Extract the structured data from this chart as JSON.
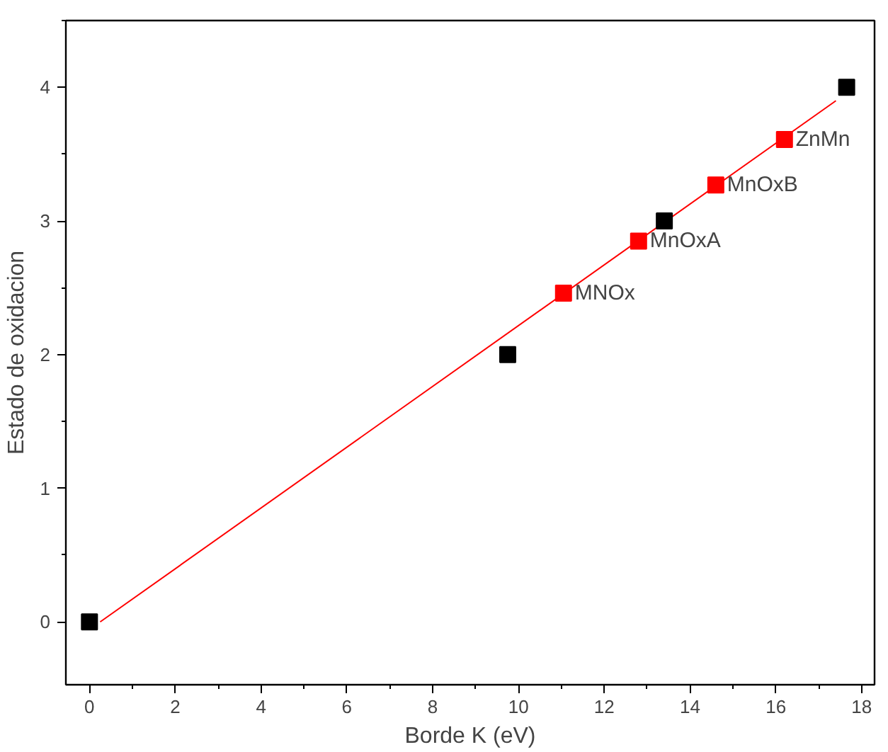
{
  "chart_data": {
    "type": "scatter",
    "xlabel": "Borde K (eV)",
    "ylabel": "Estado de oxidacion",
    "marker": "square",
    "grid": false,
    "xlim": [
      -0.55,
      18.3
    ],
    "ylim": [
      -0.47,
      4.5
    ],
    "xticks": [
      0,
      2,
      4,
      6,
      8,
      10,
      12,
      14,
      16,
      18
    ],
    "yticks": [
      0,
      1,
      2,
      3,
      4
    ],
    "series": [
      {
        "type": "line",
        "color": "#ff0000",
        "x": [
          0.25,
          17.4
        ],
        "values": [
          0.0,
          3.9
        ],
        "marker": "none"
      },
      {
        "color": "#000000",
        "x": [
          0,
          9.75,
          13.4,
          17.65
        ],
        "values": [
          0,
          2,
          3,
          4
        ]
      },
      {
        "color": "#ff0000",
        "x": [
          11.05,
          12.8,
          14.6,
          16.2
        ],
        "values": [
          2.46,
          2.85,
          3.27,
          3.61
        ]
      }
    ],
    "annotations": [
      {
        "text": "MNOx",
        "x": 11.05,
        "y": 2.46
      },
      {
        "text": "MnOxA",
        "x": 12.8,
        "y": 2.85
      },
      {
        "text": "MnOxB",
        "x": 14.6,
        "y": 3.27
      },
      {
        "text": "ZnMn",
        "x": 16.2,
        "y": 3.61
      }
    ]
  }
}
